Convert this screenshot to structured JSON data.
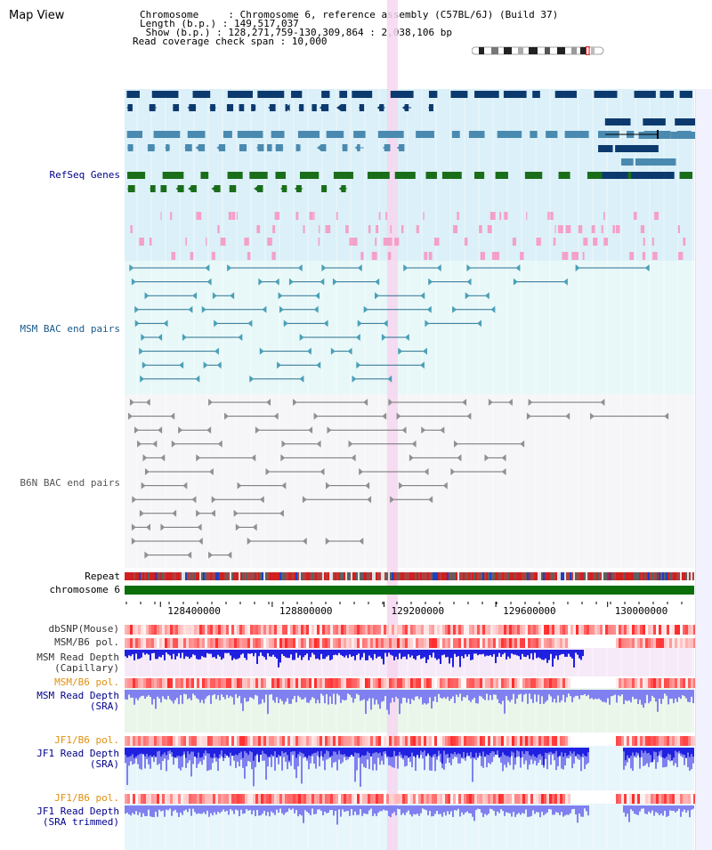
{
  "view": {
    "title": "Map View",
    "chromosome_line": "Chromosome     : Chromosome 6, reference assembly (C57BL/6J) (Build 37)",
    "length_line": "Length (b.p.) : 149,517,037",
    "show_line": " Show (b.p.) : 128,271,759-130,309,864 : 2,038,106 bp",
    "span_line": "Read coverage check span : 10,000"
  },
  "labels": {
    "refseq": "RefSeq Genes",
    "msm_bac": "MSM BAC end pairs",
    "b6n_bac": "B6N BAC end pairs",
    "repeat": "Repeat",
    "chrom": "chromosome 6",
    "dbsnp": "dbSNP(Mouse)",
    "msm_pol1": "MSM/B6 pol.",
    "msm_cap_1": "MSM Read Depth",
    "msm_cap_2": "(Capillary)",
    "msm_pol2": "MSM/B6 pol.",
    "msm_sra_1": "MSM Read Depth",
    "msm_sra_2": "(SRA)",
    "jf1_pol1": "JF1/B6 pol.",
    "jf1_sra_1": "JF1 Read Depth",
    "jf1_sra_2": "(SRA)",
    "jf1_pol2": "JF1/B6 pol.",
    "jf1_trim_1": "JF1 Read Depth",
    "jf1_trim_2": "(SRA trimmed)"
  },
  "axis": {
    "start_bp": 128271759,
    "end_bp": 130309864,
    "ticks": [
      "128400000",
      "128800000",
      "129200000",
      "129600000",
      "130000000"
    ],
    "highlight_bp": 129230000
  },
  "colors": {
    "refseq_bg": "#dbf0f8",
    "msm_bg": "#e8f8f8",
    "b6n_bg": "#f6f6f8",
    "pink_band": "#f6d6f0",
    "gene_navy": "#0d3a6e",
    "gene_steel": "#4a8ab0",
    "gene_green": "#1a6e1a",
    "msm_blue": "#2a7090",
    "b6n_gray": "#707070",
    "chrom_green": "#0a6e0a",
    "depth_blue": "#2020e0",
    "depth_light": "#8080f0",
    "label_navy": "#00008b",
    "label_orange": "#e09010",
    "label_teal": "#1a5a8a"
  }
}
